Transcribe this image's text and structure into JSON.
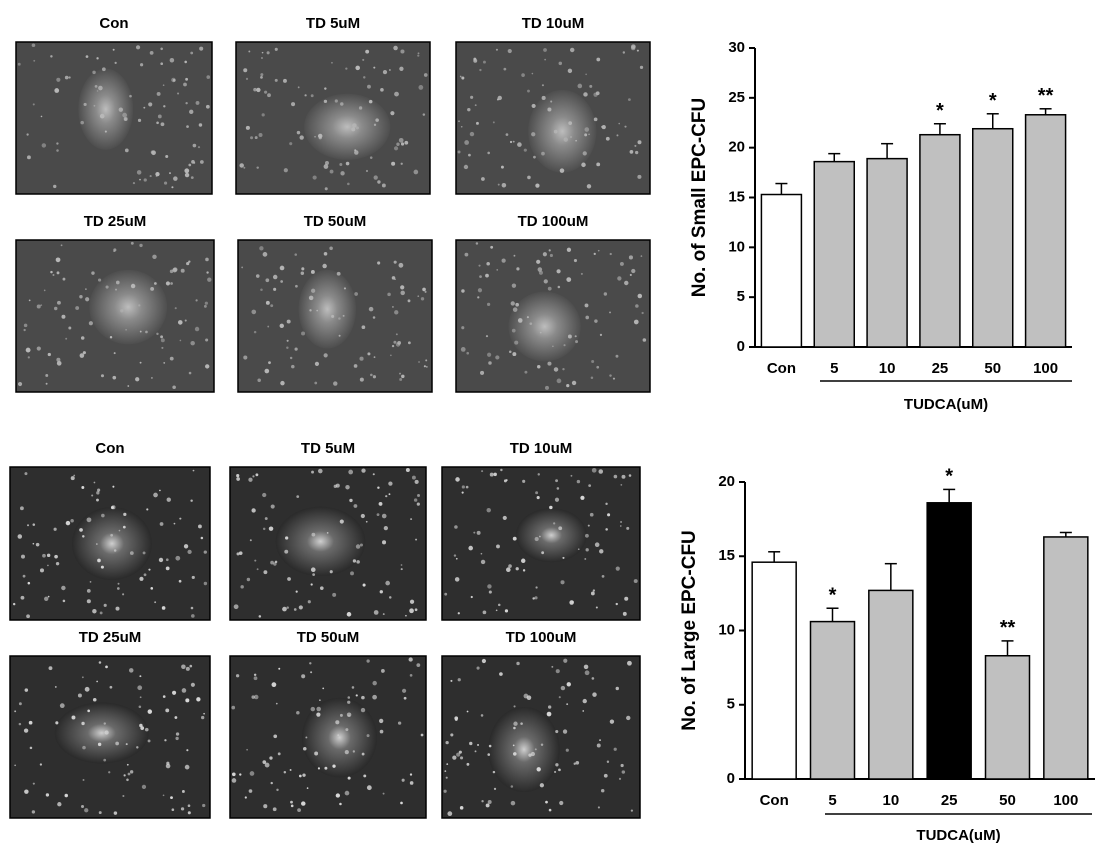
{
  "micrographs": [
    {
      "labels": [
        "Con",
        "TD 5uM",
        "TD 10uM",
        "TD 25uM",
        "TD 50uM",
        "TD 100uM"
      ]
    },
    {
      "labels": [
        "Con",
        "TD 5uM",
        "TD 10uM",
        "TD 25uM",
        "TD 50uM",
        "TD 100uM"
      ]
    }
  ],
  "chart_data": [
    {
      "type": "bar",
      "y_label": "No. of Small EPC-CFU",
      "x_label": "TUDCA(uM)",
      "categories": [
        "Con",
        "5",
        "10",
        "25",
        "50",
        "100"
      ],
      "values": [
        15.3,
        18.6,
        18.9,
        21.3,
        21.9,
        23.3
      ],
      "errors": [
        1.1,
        0.8,
        1.5,
        1.1,
        1.5,
        0.6
      ],
      "annotations": [
        null,
        null,
        null,
        "*",
        "*",
        "**"
      ],
      "colors": [
        "#ffffff",
        "#c0c0c0",
        "#c0c0c0",
        "#c0c0c0",
        "#c0c0c0",
        "#c0c0c0"
      ],
      "ylim": [
        0,
        30
      ],
      "yticks": [
        0,
        5,
        10,
        15,
        20,
        25,
        30
      ]
    },
    {
      "type": "bar",
      "y_label": "No. of Large EPC-CFU",
      "x_label": "TUDCA(uM)",
      "categories": [
        "Con",
        "5",
        "10",
        "25",
        "50",
        "100"
      ],
      "values": [
        14.6,
        10.6,
        12.7,
        18.6,
        8.3,
        16.3
      ],
      "errors": [
        0.7,
        0.9,
        1.8,
        0.9,
        1.0,
        0.3
      ],
      "annotations": [
        null,
        "*",
        null,
        "*",
        "**",
        null
      ],
      "colors": [
        "#ffffff",
        "#c0c0c0",
        "#c0c0c0",
        "#000000",
        "#c0c0c0",
        "#c0c0c0"
      ],
      "ylim": [
        0,
        20
      ],
      "yticks": [
        0,
        5,
        10,
        15,
        20
      ]
    }
  ]
}
